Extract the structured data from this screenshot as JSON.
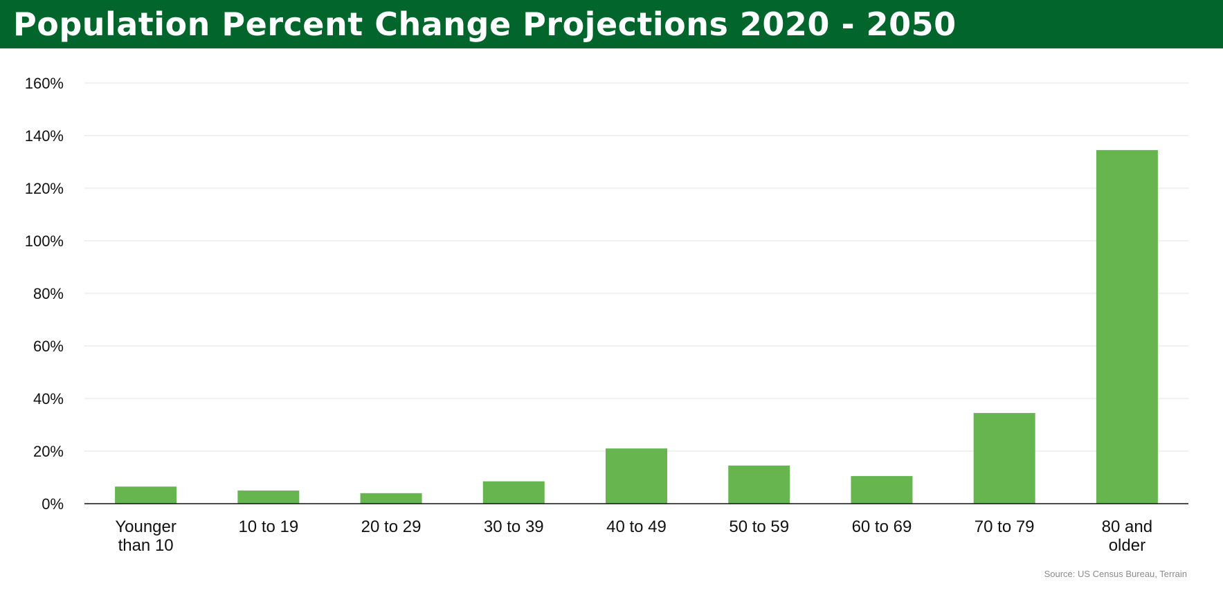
{
  "header": {
    "title": "Population Percent Change Projections 2020 - 2050"
  },
  "footer": {
    "source": "Source: US Census Bureau, Terrain"
  },
  "colors": {
    "title_bar": "#01652c",
    "bar": "#66b54f",
    "gridline": "#e3e3e3",
    "axis": "#111111"
  },
  "chart_data": {
    "type": "bar",
    "title": "Population Percent Change Projections 2020 - 2050",
    "xlabel": "",
    "ylabel": "",
    "categories": [
      [
        "Younger",
        "than 10"
      ],
      [
        "10 to 19"
      ],
      [
        "20 to 29"
      ],
      [
        "30 to 39"
      ],
      [
        "40 to 49"
      ],
      [
        "50 to 59"
      ],
      [
        "60 to 69"
      ],
      [
        "70 to 79"
      ],
      [
        "80 and",
        "older"
      ]
    ],
    "values": [
      6.5,
      5,
      4,
      8.5,
      21,
      14.5,
      10.5,
      34.5,
      134.5
    ],
    "unit": "%",
    "ylim": [
      0,
      160
    ],
    "yticks": [
      0,
      20,
      40,
      60,
      80,
      100,
      120,
      140,
      160
    ],
    "ytick_labels": [
      "0%",
      "20%",
      "40%",
      "60%",
      "80%",
      "100%",
      "120%",
      "140%",
      "160%"
    ],
    "grid": true,
    "legend": "none"
  }
}
